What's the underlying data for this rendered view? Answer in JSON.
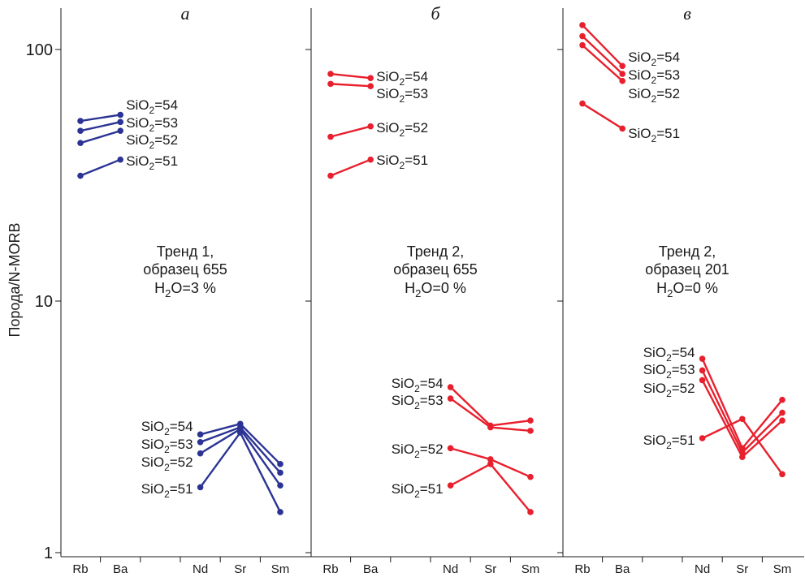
{
  "chart_data": {
    "type": "line",
    "ylabel": "Порода/N-MORB",
    "yscale": "log",
    "ylim": [
      1,
      130
    ],
    "yticks": [
      {
        "value": 1,
        "label": "1"
      },
      {
        "value": 10,
        "label": "10"
      },
      {
        "value": 100,
        "label": "100"
      }
    ],
    "categories": [
      "Rb",
      "Ba",
      "",
      "Nd",
      "Sr",
      "Sm"
    ],
    "label_prefix": "SiO",
    "label_sub": "2",
    "panels": [
      {
        "letter": "а",
        "color": "#2b3494",
        "annotation": {
          "line1": "Тренд 1,",
          "line2": "образец 655",
          "line3_pre": "H",
          "line3_sub": "2",
          "line3_post": "O=3 %"
        },
        "series": [
          {
            "label": "=54",
            "values": [
              52,
              55,
              null,
              2.95,
              3.25,
              2.25
            ]
          },
          {
            "label": "=53",
            "values": [
              47.5,
              51.5,
              null,
              2.75,
              3.15,
              2.08
            ]
          },
          {
            "label": "=52",
            "values": [
              42.5,
              47.5,
              null,
              2.48,
              3.1,
              1.85
            ]
          },
          {
            "label": "=51",
            "values": [
              31.5,
              36.5,
              null,
              1.82,
              3.0,
              1.45
            ]
          }
        ]
      },
      {
        "letter": "б",
        "color": "#e8202e",
        "annotation": {
          "line1": "Тренд 2,",
          "line2": "образец 655",
          "line3_pre": "H",
          "line3_sub": "2",
          "line3_post": "O=0 %"
        },
        "series": [
          {
            "label": "=54",
            "values": [
              80,
              77,
              null,
              4.55,
              3.2,
              3.35
            ]
          },
          {
            "label": "=53",
            "values": [
              73,
              71.5,
              null,
              4.1,
              3.15,
              3.05
            ]
          },
          {
            "label": "=52",
            "values": [
              45,
              49.5,
              null,
              2.6,
              2.35,
              2.0
            ]
          },
          {
            "label": "=51",
            "values": [
              31.5,
              36.5,
              null,
              1.85,
              2.25,
              1.45
            ]
          }
        ]
      },
      {
        "letter": "в",
        "color": "#e8202e",
        "annotation": {
          "line1": "Тренд 2,",
          "line2": "образец 201",
          "line3_pre": "H",
          "line3_sub": "2",
          "line3_post": "O=0 %"
        },
        "series": [
          {
            "label": "=54",
            "values": [
              125,
              86,
              null,
              5.9,
              2.6,
              4.05
            ]
          },
          {
            "label": "=53",
            "values": [
              113,
              80,
              null,
              5.3,
              2.5,
              3.6
            ]
          },
          {
            "label": "=52",
            "values": [
              104,
              75,
              null,
              4.85,
              2.4,
              3.35
            ]
          },
          {
            "label": "=51",
            "values": [
              61,
              48.5,
              null,
              2.85,
              3.4,
              2.05
            ]
          }
        ]
      }
    ]
  }
}
